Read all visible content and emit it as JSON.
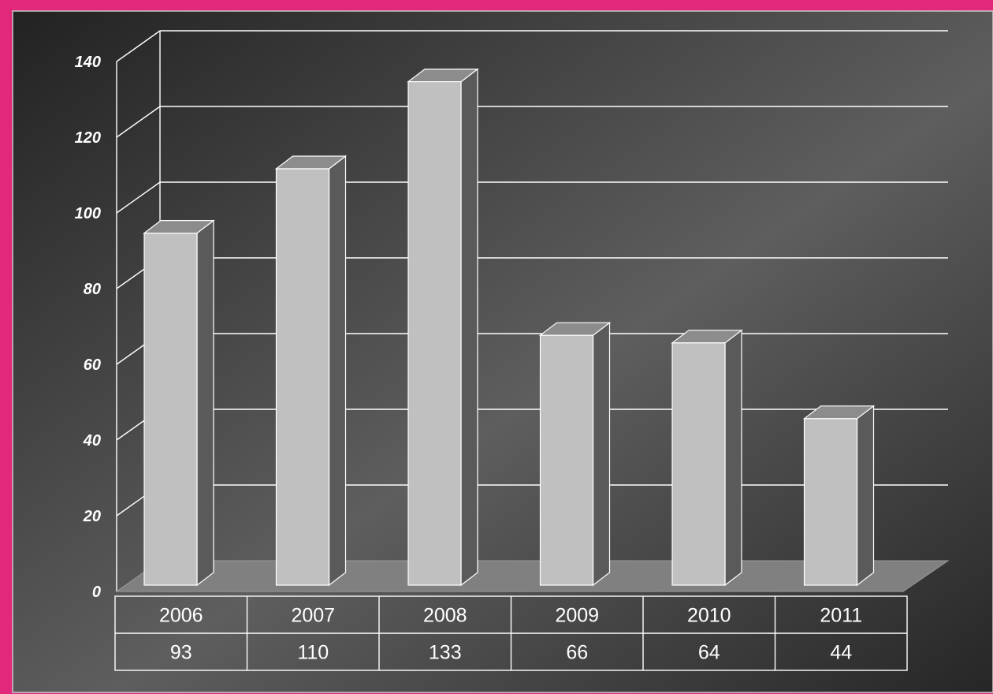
{
  "chart_data": {
    "type": "bar",
    "categories": [
      "2006",
      "2007",
      "2008",
      "2009",
      "2010",
      "2011"
    ],
    "values": [
      93,
      110,
      133,
      66,
      64,
      44
    ],
    "title": "",
    "xlabel": "",
    "ylabel": "",
    "ylim": [
      0,
      140
    ],
    "yticks": [
      "0",
      "20",
      "40",
      "60",
      "80",
      "100",
      "120",
      "140"
    ],
    "grid": true,
    "style": "3d-column",
    "legend": "none",
    "data_table": {
      "rows": [
        [
          "2006",
          "2007",
          "2008",
          "2009",
          "2010",
          "2011"
        ],
        [
          "93",
          "110",
          "133",
          "66",
          "64",
          "44"
        ]
      ]
    }
  },
  "colors": {
    "frame_border": "#e2287a",
    "background_dark": "#262626",
    "background_light": "#5f5f5f",
    "bar_front": "#c0c0c0",
    "bar_side": "#5a5a5a",
    "bar_top": "#8c8c8c",
    "floor": "#808080",
    "grid": "#ffffff"
  }
}
